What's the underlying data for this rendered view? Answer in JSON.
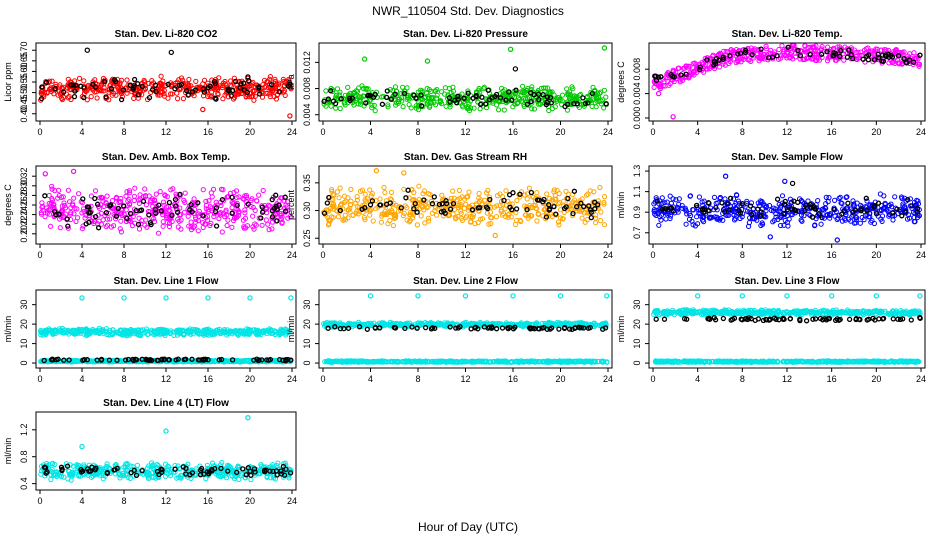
{
  "figure": {
    "title": "NWR_110504 Std. Dev. Diagnostics",
    "xlabel": "Hour of Day (UTC)"
  },
  "chart_data": [
    {
      "type": "scatter",
      "title": "Stan. Dev. Li-820 CO2",
      "ylabel": "Licor ppm",
      "xlim": [
        0,
        24
      ],
      "ylim": [
        0.38,
        0.72
      ],
      "xticks": [
        0,
        4,
        8,
        12,
        16,
        20,
        24
      ],
      "yticks": [
        0.4,
        0.45,
        0.5,
        0.55,
        0.6,
        0.65,
        0.7
      ],
      "yticklabels": [
        "0.40",
        "0.45",
        "0.50",
        "0.55",
        "0.60",
        "0.65",
        "0.70"
      ],
      "series": [
        {
          "color": "#ff0000",
          "band": [
            0.46,
            0.58
          ],
          "outliers": [
            [
              23.8,
              0.39
            ],
            [
              15.5,
              0.42
            ]
          ]
        },
        {
          "color": "#000000",
          "band": [
            0.46,
            0.58
          ],
          "outliers": [
            [
              4.5,
              0.7
            ],
            [
              12.5,
              0.69
            ]
          ]
        }
      ]
    },
    {
      "type": "scatter",
      "title": "Stan. Dev. Li-820 Pressure",
      "ylabel": "kPa",
      "xlim": [
        0,
        24
      ],
      "ylim": [
        0.0035,
        0.0145
      ],
      "xticks": [
        0,
        4,
        8,
        12,
        16,
        20,
        24
      ],
      "yticks": [
        0.004,
        0.008,
        0.012
      ],
      "yticklabels": [
        "0.004",
        "0.008",
        "0.012"
      ],
      "series": [
        {
          "color": "#00c800",
          "band": [
            0.0045,
            0.0085
          ],
          "outliers": [
            [
              23.7,
              0.0142
            ],
            [
              15.8,
              0.014
            ],
            [
              3.5,
              0.0125
            ],
            [
              8.8,
              0.0122
            ]
          ]
        },
        {
          "color": "#000000",
          "band": [
            0.005,
            0.008
          ],
          "outliers": [
            [
              16.2,
              0.011
            ]
          ]
        }
      ]
    },
    {
      "type": "scatter",
      "title": "Stan. Dev. Li-820 Temp.",
      "ylabel": "degrees C",
      "xlim": [
        0,
        24
      ],
      "ylim": [
        0,
        0.0118
      ],
      "xticks": [
        0,
        4,
        8,
        12,
        16,
        20,
        24
      ],
      "yticks": [
        0,
        0.004,
        0.008
      ],
      "yticklabels": [
        "0.000",
        "0.004",
        "0.008"
      ],
      "series": [
        {
          "color": "#ff00ff",
          "trend": [
            [
              0,
              0.0055
            ],
            [
              3,
              0.0075
            ],
            [
              7,
              0.0102
            ],
            [
              12,
              0.0108
            ],
            [
              17,
              0.0105
            ],
            [
              22,
              0.01
            ],
            [
              24,
              0.0095
            ]
          ],
          "spread": 0.0012,
          "outliers": [
            [
              1.8,
              0.0002
            ],
            [
              0.5,
              0.004
            ]
          ]
        },
        {
          "color": "#000000",
          "trend": [
            [
              0,
              0.0065
            ],
            [
              3,
              0.0078
            ],
            [
              7,
              0.0102
            ],
            [
              12,
              0.0108
            ],
            [
              17,
              0.0104
            ],
            [
              24,
              0.0096
            ]
          ],
          "spread": 0.0008,
          "outliers": []
        }
      ]
    },
    {
      "type": "scatter",
      "title": "Stan. Dev. Amb. Box Temp.",
      "ylabel": "degrees C",
      "xlim": [
        0,
        24
      ],
      "ylim": [
        0.185,
        0.335
      ],
      "xticks": [
        0,
        4,
        8,
        12,
        16,
        20,
        24
      ],
      "yticks": [
        0.2,
        0.22,
        0.24,
        0.26,
        0.28,
        0.3,
        0.32
      ],
      "yticklabels": [
        "0.20",
        "0.22",
        "0.24",
        "0.26",
        "0.28",
        "0.30",
        "0.32"
      ],
      "series": [
        {
          "color": "#ff00ff",
          "band": [
            0.2,
            0.3
          ],
          "outliers": [
            [
              3.2,
              0.33
            ],
            [
              0.5,
              0.325
            ]
          ]
        },
        {
          "color": "#000000",
          "band": [
            0.205,
            0.29
          ],
          "outliers": []
        }
      ]
    },
    {
      "type": "scatter",
      "title": "Stan. Dev. Gas Stream RH",
      "ylabel": "percent",
      "xlim": [
        0,
        24
      ],
      "ylim": [
        0.245,
        0.375
      ],
      "xticks": [
        0,
        4,
        8,
        12,
        16,
        20,
        24
      ],
      "yticks": [
        0.25,
        0.3,
        0.35
      ],
      "yticklabels": [
        "0.25",
        "0.30",
        "0.35"
      ],
      "series": [
        {
          "color": "#ffa500",
          "band": [
            0.27,
            0.345
          ],
          "outliers": [
            [
              4.5,
              0.372
            ],
            [
              6.8,
              0.368
            ],
            [
              14.5,
              0.255
            ]
          ]
        },
        {
          "color": "#000000",
          "band": [
            0.28,
            0.34
          ],
          "outliers": []
        }
      ]
    },
    {
      "type": "scatter",
      "title": "Stan. Dev. Sample Flow",
      "ylabel": "ml/min",
      "xlim": [
        0,
        24
      ],
      "ylim": [
        0.62,
        1.32
      ],
      "xticks": [
        0,
        4,
        8,
        12,
        16,
        20,
        24
      ],
      "yticks": [
        0.7,
        0.9,
        1.1,
        1.3
      ],
      "yticklabels": [
        "0.7",
        "0.9",
        "1.1",
        "1.3"
      ],
      "series": [
        {
          "color": "#0000ff",
          "band": [
            0.75,
            1.08
          ],
          "outliers": [
            [
              6.5,
              1.25
            ],
            [
              11.8,
              1.2
            ],
            [
              16.5,
              0.63
            ],
            [
              10.5,
              0.66
            ]
          ]
        },
        {
          "color": "#000000",
          "band": [
            0.82,
            1.05
          ],
          "outliers": [
            [
              12.5,
              1.18
            ]
          ]
        }
      ]
    },
    {
      "type": "scatter",
      "title": "Stan. Dev. Line 1 Flow",
      "ylabel": "ml/min",
      "xlim": [
        0,
        24
      ],
      "ylim": [
        -1,
        36
      ],
      "xticks": [
        0,
        4,
        8,
        12,
        16,
        20,
        24
      ],
      "yticks": [
        0,
        10,
        20,
        30
      ],
      "yticklabels": [
        "0",
        "10",
        "20",
        "30"
      ],
      "series": [
        {
          "color": "#00e5e5",
          "band": [
            14,
            18
          ],
          "outliers": [
            [
              4,
              33.5
            ],
            [
              8,
              33.5
            ],
            [
              12,
              33.5
            ],
            [
              16,
              33.5
            ],
            [
              20,
              33.5
            ],
            [
              23.9,
              33.5
            ]
          ]
        },
        {
          "color": "#00e5e5",
          "band": [
            0.5,
            1.5
          ],
          "outliers": []
        },
        {
          "color": "#000000",
          "band": [
            1.2,
            2.2
          ],
          "outliers": []
        }
      ]
    },
    {
      "type": "scatter",
      "title": "Stan. Dev. Line 2 Flow",
      "ylabel": "ml/min",
      "xlim": [
        0,
        24
      ],
      "ylim": [
        -1,
        36
      ],
      "xticks": [
        0,
        4,
        8,
        12,
        16,
        20,
        24
      ],
      "yticks": [
        0,
        10,
        20,
        30
      ],
      "yticklabels": [
        "0",
        "10",
        "20",
        "30"
      ],
      "series": [
        {
          "color": "#00e5e5",
          "band": [
            18.5,
            21
          ],
          "outliers": [
            [
              4,
              34.5
            ],
            [
              8,
              34.5
            ],
            [
              12,
              34.5
            ],
            [
              16,
              34.5
            ],
            [
              20,
              34.5
            ],
            [
              23.9,
              34.5
            ]
          ]
        },
        {
          "color": "#00e5e5",
          "band": [
            0.3,
            1.2
          ],
          "outliers": []
        },
        {
          "color": "#000000",
          "band": [
            17.2,
            18.8
          ],
          "outliers": []
        }
      ]
    },
    {
      "type": "scatter",
      "title": "Stan. Dev. Line 3 Flow",
      "ylabel": "ml/min",
      "xlim": [
        0,
        24
      ],
      "ylim": [
        -1,
        36
      ],
      "xticks": [
        0,
        4,
        8,
        12,
        16,
        20,
        24
      ],
      "yticks": [
        0,
        10,
        20,
        30
      ],
      "yticklabels": [
        "0",
        "10",
        "20",
        "30"
      ],
      "series": [
        {
          "color": "#00e5e5",
          "band": [
            24.5,
            27.5
          ],
          "outliers": [
            [
              4,
              34.5
            ],
            [
              8,
              34.5
            ],
            [
              12,
              34.5
            ],
            [
              16,
              34.5
            ],
            [
              20,
              34.5
            ],
            [
              23.9,
              34.5
            ]
          ]
        },
        {
          "color": "#00e5e5",
          "band": [
            0.3,
            1.2
          ],
          "outliers": []
        },
        {
          "color": "#000000",
          "band": [
            21.5,
            23.5
          ],
          "outliers": []
        }
      ]
    },
    {
      "type": "scatter",
      "title": "Stan. Dev. Line 4 (LT) Flow",
      "ylabel": "ml/min",
      "xlim": [
        0,
        24
      ],
      "ylim": [
        0.35,
        1.42
      ],
      "xticks": [
        0,
        4,
        8,
        12,
        16,
        20,
        24
      ],
      "yticks": [
        0.4,
        0.8,
        1.2
      ],
      "yticklabels": [
        "0.4",
        "0.8",
        "1.2"
      ],
      "series": [
        {
          "color": "#00e5e5",
          "band": [
            0.45,
            0.72
          ],
          "outliers": [
            [
              19.8,
              1.38
            ],
            [
              12,
              1.18
            ],
            [
              4,
              0.95
            ]
          ]
        },
        {
          "color": "#000000",
          "band": [
            0.5,
            0.68
          ],
          "outliers": []
        }
      ]
    }
  ]
}
